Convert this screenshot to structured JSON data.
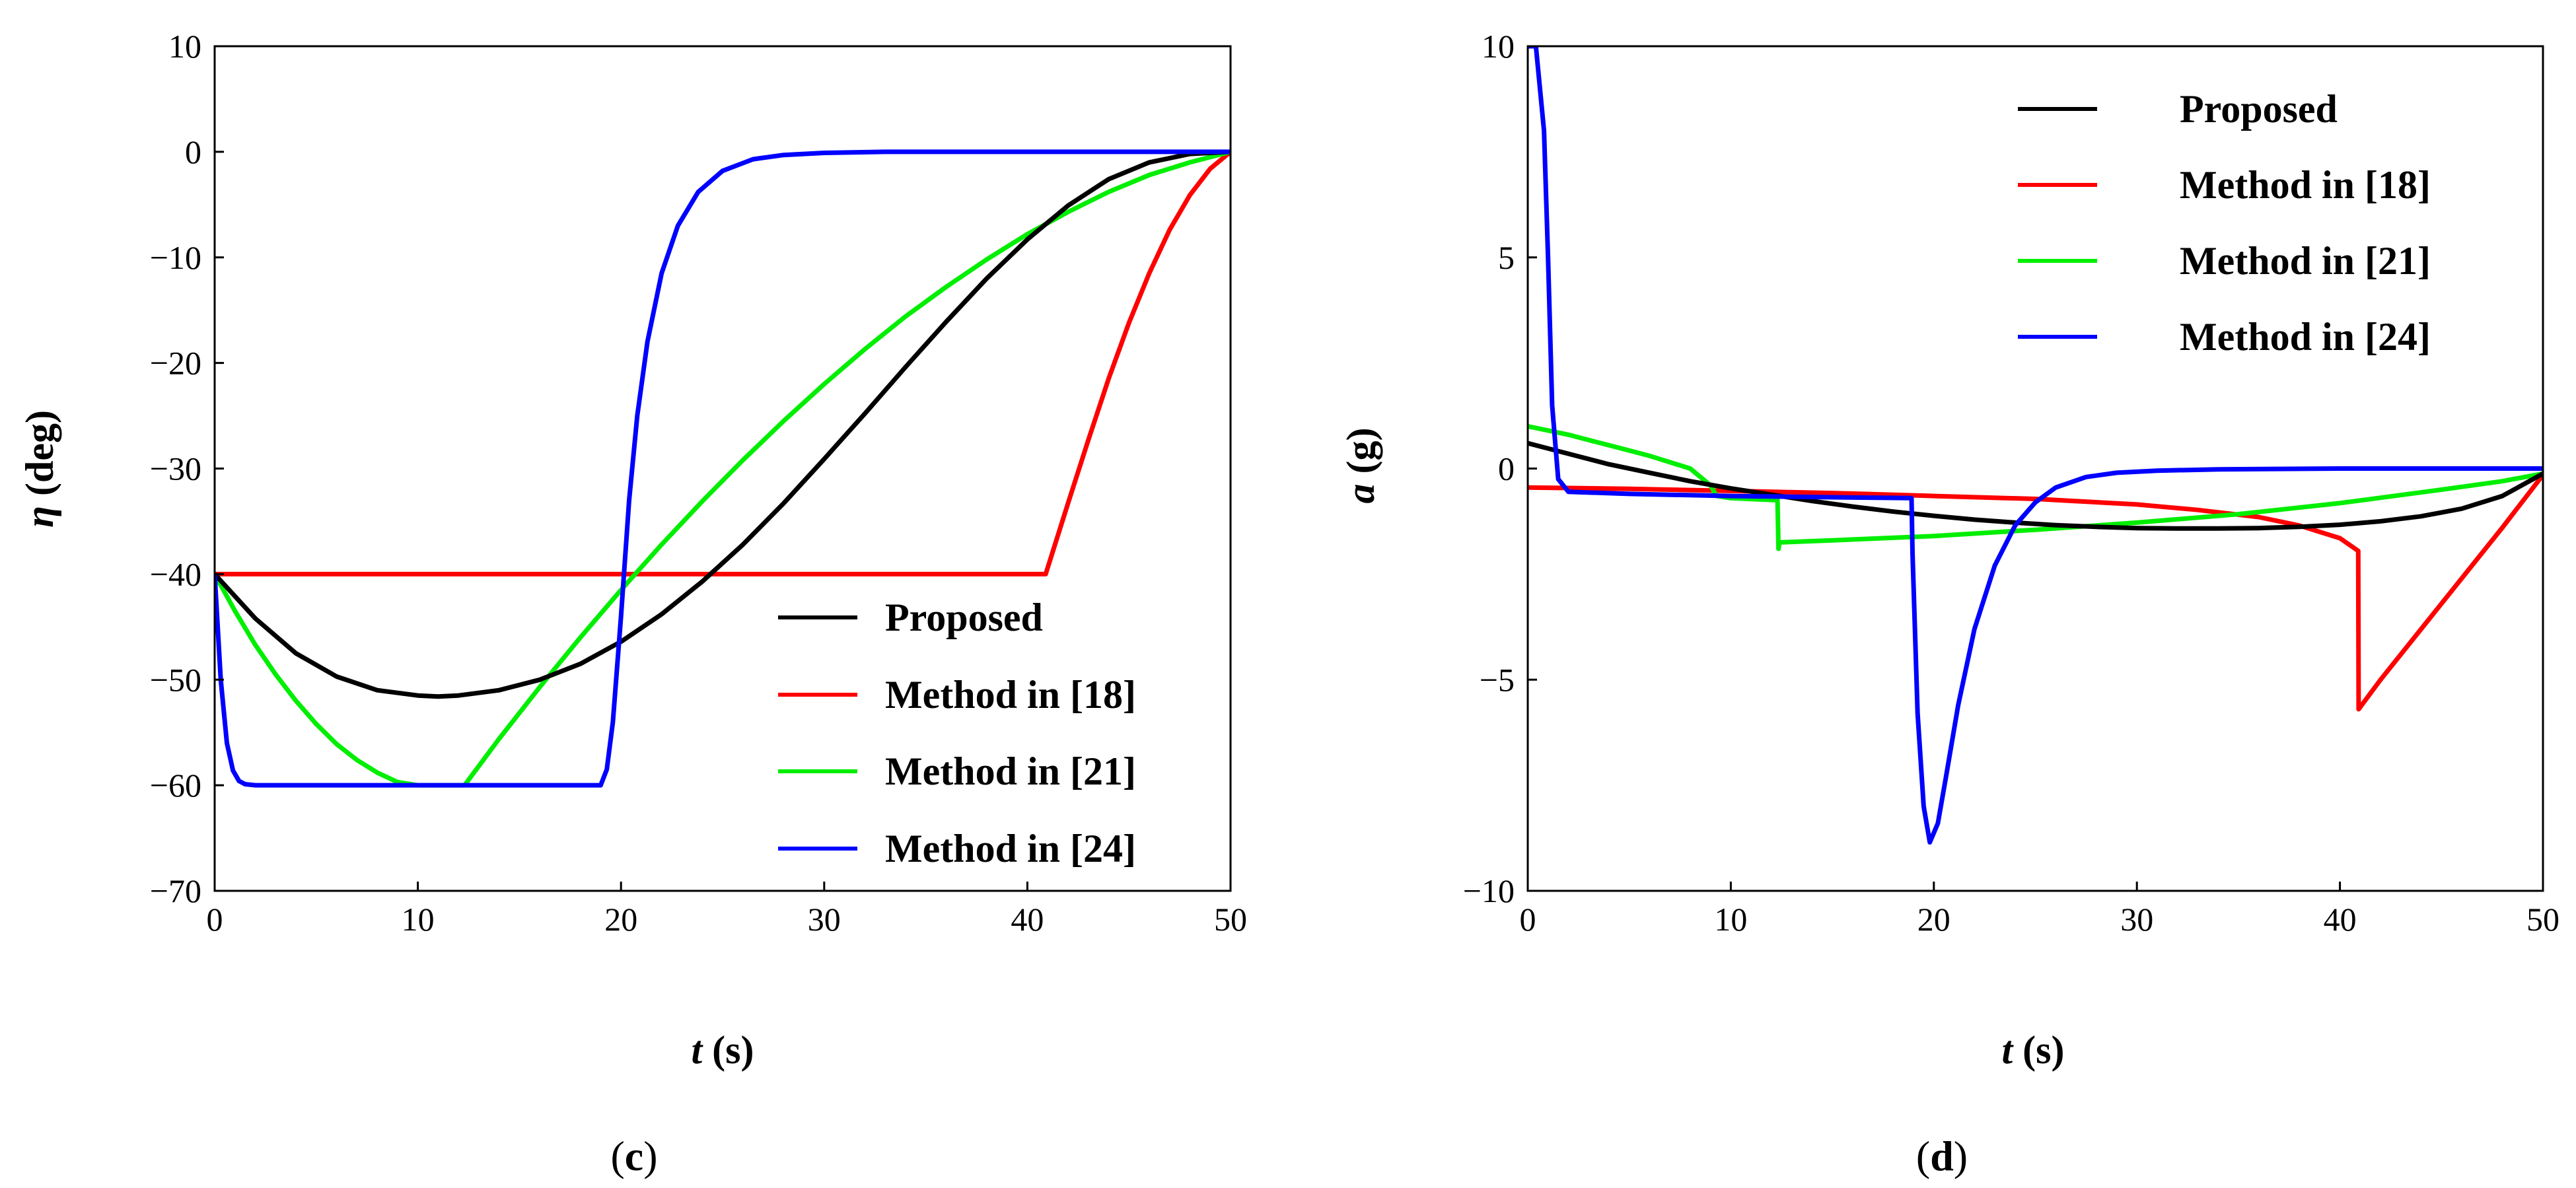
{
  "colors": {
    "Proposed": "#000000",
    "Method in [18]": "#ff0000",
    "Method in [21]": "#00ee00",
    "Method in [24]": "#0000ff"
  },
  "chart_data": [
    {
      "type": "line",
      "panel": "c",
      "caption": {
        "open": "(",
        "letter": "c",
        "close": ")"
      },
      "ylabel": {
        "symbol": "η",
        "unit": "(deg)"
      },
      "xlabel": {
        "symbol": "t",
        "unit": "(s)"
      },
      "xlim": [
        0,
        50
      ],
      "ylim": [
        -70,
        10
      ],
      "xticks": [
        0,
        10,
        20,
        30,
        40,
        50
      ],
      "yticks": [
        10,
        0,
        -10,
        -20,
        -30,
        -40,
        -50,
        -60,
        -70
      ],
      "xtick_labels": [
        "0",
        "10",
        "20",
        "30",
        "40",
        "50"
      ],
      "ytick_labels": [
        "10",
        "0",
        "−10",
        "−20",
        "−30",
        "−40",
        "−50",
        "−60",
        "−70"
      ],
      "legend_position": "bottom-right",
      "series": [
        {
          "name": "Proposed",
          "color": "#000000",
          "x": [
            0,
            2,
            4,
            6,
            8,
            10,
            11,
            12,
            14,
            16,
            18,
            20,
            22,
            24,
            26,
            28,
            30,
            32,
            34,
            36,
            38,
            40,
            42,
            44,
            46,
            48,
            50
          ],
          "y": [
            -40,
            -44.2,
            -47.5,
            -49.7,
            -51.0,
            -51.5,
            -51.6,
            -51.5,
            -51.0,
            -50.0,
            -48.5,
            -46.4,
            -43.8,
            -40.7,
            -37.2,
            -33.3,
            -29.1,
            -24.8,
            -20.4,
            -16.1,
            -12.0,
            -8.3,
            -5.1,
            -2.6,
            -1.0,
            -0.2,
            0
          ]
        },
        {
          "name": "Method in [18]",
          "color": "#ff0000",
          "x": [
            0,
            40.9,
            42,
            43,
            44,
            45,
            46,
            47,
            48,
            49,
            50
          ],
          "y": [
            -40,
            -40,
            -33.3,
            -27.3,
            -21.5,
            -16.2,
            -11.5,
            -7.4,
            -4.1,
            -1.6,
            0
          ]
        },
        {
          "name": "Method in [21]",
          "color": "#00ee00",
          "x": [
            0,
            1,
            2,
            3,
            4,
            5,
            6,
            7,
            8,
            9,
            10,
            12.3,
            14,
            16,
            18,
            20,
            22,
            24,
            26,
            28,
            30,
            32,
            34,
            36,
            38,
            40,
            42,
            44,
            46,
            48,
            50
          ],
          "y": [
            -40,
            -43.5,
            -46.7,
            -49.5,
            -52.0,
            -54.2,
            -56.1,
            -57.6,
            -58.8,
            -59.7,
            -60,
            -60,
            -55.6,
            -50.7,
            -46.0,
            -41.5,
            -37.2,
            -33.1,
            -29.2,
            -25.5,
            -22.0,
            -18.7,
            -15.6,
            -12.8,
            -10.2,
            -7.8,
            -5.7,
            -3.8,
            -2.2,
            -1.0,
            0
          ]
        },
        {
          "name": "Method in [24]",
          "color": "#0000ff",
          "x": [
            0,
            0.3,
            0.6,
            0.9,
            1.2,
            1.5,
            2,
            19,
            19.3,
            19.6,
            20,
            20.4,
            20.8,
            21.3,
            22,
            22.8,
            23.8,
            25,
            26.5,
            28,
            30,
            33,
            40,
            50
          ],
          "y": [
            -40,
            -50,
            -56.0,
            -58.6,
            -59.6,
            -59.9,
            -60,
            -60,
            -58.5,
            -54.0,
            -44.0,
            -33.0,
            -25.0,
            -18.0,
            -11.5,
            -7.0,
            -3.8,
            -1.8,
            -0.7,
            -0.3,
            -0.1,
            0,
            0,
            0
          ]
        }
      ]
    },
    {
      "type": "line",
      "panel": "d",
      "caption": {
        "open": "(",
        "letter": "d",
        "close": ")"
      },
      "ylabel": {
        "symbol": "a",
        "unit": "(g)"
      },
      "xlabel": {
        "symbol": "t",
        "unit": "(s)"
      },
      "xlim": [
        0,
        50
      ],
      "ylim": [
        -10,
        10
      ],
      "xticks": [
        0,
        10,
        20,
        30,
        40,
        50
      ],
      "yticks": [
        10,
        5,
        0,
        -5,
        -10
      ],
      "xtick_labels": [
        "0",
        "10",
        "20",
        "30",
        "40",
        "50"
      ],
      "ytick_labels": [
        "10",
        "5",
        "0",
        "−5",
        "−10"
      ],
      "legend_position": "top-right",
      "series": [
        {
          "name": "Proposed",
          "color": "#000000",
          "x": [
            0,
            2,
            4,
            6,
            8,
            10,
            12,
            14,
            16,
            18,
            20,
            22,
            24,
            26,
            28,
            30,
            32,
            34,
            36,
            38,
            40,
            42,
            44,
            46,
            48,
            50
          ],
          "y": [
            0.6,
            0.35,
            0.1,
            -0.1,
            -0.3,
            -0.47,
            -0.62,
            -0.77,
            -0.9,
            -1.02,
            -1.12,
            -1.21,
            -1.28,
            -1.34,
            -1.38,
            -1.41,
            -1.42,
            -1.42,
            -1.41,
            -1.38,
            -1.33,
            -1.25,
            -1.13,
            -0.95,
            -0.65,
            -0.12
          ]
        },
        {
          "name": "Method in [18]",
          "color": "#ff0000",
          "x": [
            0,
            5,
            10,
            15,
            20,
            25,
            30,
            33,
            36,
            38,
            40,
            40.9,
            40.92,
            42,
            44,
            46,
            48,
            50
          ],
          "y": [
            -0.45,
            -0.48,
            -0.53,
            -0.58,
            -0.65,
            -0.72,
            -0.85,
            -0.98,
            -1.15,
            -1.35,
            -1.65,
            -1.95,
            -5.7,
            -5.0,
            -3.8,
            -2.6,
            -1.4,
            -0.15
          ]
        },
        {
          "name": "Method in [21]",
          "color": "#00ee00",
          "x": [
            0,
            2,
            4,
            6,
            8,
            9,
            9.3,
            10,
            12.3,
            12.35,
            12.4,
            15,
            20,
            25,
            30,
            35,
            40,
            45,
            48,
            50
          ],
          "y": [
            1.0,
            0.8,
            0.55,
            0.3,
            0.0,
            -0.4,
            -0.65,
            -0.7,
            -0.75,
            -1.9,
            -1.75,
            -1.7,
            -1.6,
            -1.45,
            -1.28,
            -1.08,
            -0.82,
            -0.5,
            -0.3,
            -0.12
          ]
        },
        {
          "name": "Method in [24]",
          "color": "#0000ff",
          "x": [
            0,
            0.4,
            0.8,
            1.0,
            1.2,
            1.5,
            2,
            5,
            10,
            15,
            18.9,
            18.95,
            19.2,
            19.5,
            19.8,
            20.2,
            20.6,
            21.2,
            22,
            23,
            24,
            25,
            26,
            27.5,
            29,
            31,
            34,
            40,
            50
          ],
          "y": [
            10,
            10,
            8,
            5,
            1.5,
            -0.25,
            -0.55,
            -0.6,
            -0.65,
            -0.68,
            -0.7,
            -2.0,
            -5.8,
            -8.0,
            -8.85,
            -8.4,
            -7.3,
            -5.6,
            -3.8,
            -2.3,
            -1.35,
            -0.8,
            -0.45,
            -0.2,
            -0.1,
            -0.05,
            -0.02,
            0,
            0
          ]
        }
      ]
    }
  ]
}
